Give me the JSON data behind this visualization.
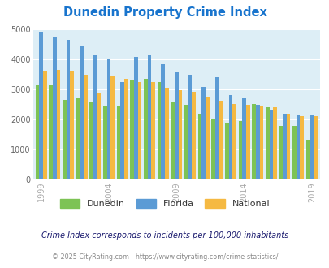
{
  "title": "Dunedin Property Crime Index",
  "title_color": "#1874cd",
  "years": [
    1999,
    2000,
    2001,
    2002,
    2003,
    2004,
    2005,
    2006,
    2007,
    2008,
    2009,
    2010,
    2011,
    2012,
    2013,
    2014,
    2015,
    2016,
    2017,
    2018,
    2019
  ],
  "dunedin": [
    3150,
    3150,
    2650,
    2700,
    2600,
    2470,
    2450,
    3300,
    3350,
    3250,
    2600,
    2500,
    2200,
    2000,
    1900,
    1950,
    2520,
    2400,
    1800,
    1800,
    1300
  ],
  "florida": [
    4920,
    4770,
    4650,
    4450,
    4150,
    4000,
    3250,
    4080,
    4150,
    3850,
    3580,
    3480,
    3100,
    3410,
    2820,
    2720,
    2500,
    2300,
    2200,
    2150,
    2150
  ],
  "national": [
    3600,
    3650,
    3600,
    3500,
    2900,
    3450,
    3350,
    3260,
    3240,
    3050,
    2970,
    2930,
    2770,
    2620,
    2510,
    2500,
    2470,
    2420,
    2200,
    2100,
    2120
  ],
  "dunedin_color": "#7dc355",
  "florida_color": "#5b9bd5",
  "national_color": "#f5b942",
  "plot_bg": "#ddeef6",
  "ylabel_ticks": [
    0,
    1000,
    2000,
    3000,
    4000,
    5000
  ],
  "tick_years": [
    1999,
    2004,
    2009,
    2014,
    2019
  ],
  "footnote": "Crime Index corresponds to incidents per 100,000 inhabitants",
  "copyright": "© 2025 CityRating.com - https://www.cityrating.com/crime-statistics/",
  "footnote_color": "#1a1a6e",
  "copyright_color": "#888888"
}
